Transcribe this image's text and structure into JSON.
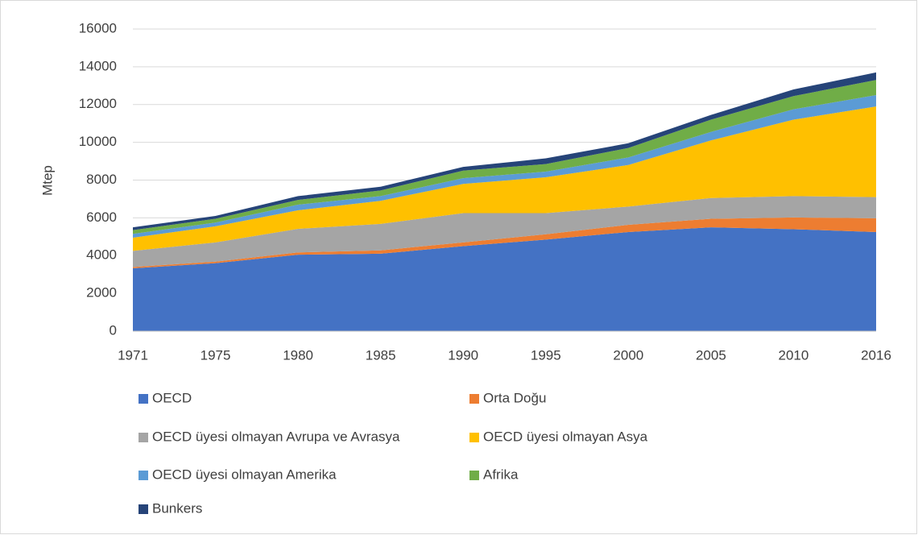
{
  "chart_data": {
    "type": "stacked_area",
    "ylabel": "Mtep",
    "categories": [
      "1971",
      "1975",
      "1980",
      "1985",
      "1990",
      "1995",
      "2000",
      "2005",
      "2010",
      "2016"
    ],
    "ylim": [
      0,
      16000
    ],
    "yticks": [
      0,
      2000,
      4000,
      6000,
      8000,
      10000,
      12000,
      14000,
      16000
    ],
    "grid": true,
    "series": [
      {
        "name": "OECD",
        "color": "#4472c4",
        "values": [
          3330,
          3600,
          4050,
          4100,
          4500,
          4850,
          5250,
          5500,
          5400,
          5250
        ]
      },
      {
        "name": "Orta Doğu",
        "color": "#ed7d31",
        "values": [
          70,
          80,
          120,
          180,
          200,
          280,
          380,
          450,
          620,
          730
        ]
      },
      {
        "name": "OECD üyesi olmayan Avrupa ve Avrasya",
        "color": "#a5a5a5",
        "values": [
          850,
          1020,
          1250,
          1400,
          1550,
          1120,
          970,
          1100,
          1130,
          1120
        ]
      },
      {
        "name": "OECD üyesi olmayan Asya",
        "color": "#ffc000",
        "values": [
          700,
          850,
          980,
          1220,
          1550,
          1900,
          2200,
          3050,
          4050,
          4800
        ]
      },
      {
        "name": "OECD üyesi olmayan Amerika",
        "color": "#5b9bd5",
        "values": [
          200,
          200,
          300,
          250,
          300,
          300,
          400,
          450,
          550,
          600
        ]
      },
      {
        "name": "Afrika",
        "color": "#70ad47",
        "values": [
          200,
          200,
          250,
          300,
          400,
          400,
          500,
          650,
          700,
          800
        ]
      },
      {
        "name": "Bunkers",
        "color": "#264478",
        "values": [
          150,
          150,
          200,
          200,
          200,
          300,
          250,
          250,
          350,
          400
        ]
      }
    ]
  }
}
